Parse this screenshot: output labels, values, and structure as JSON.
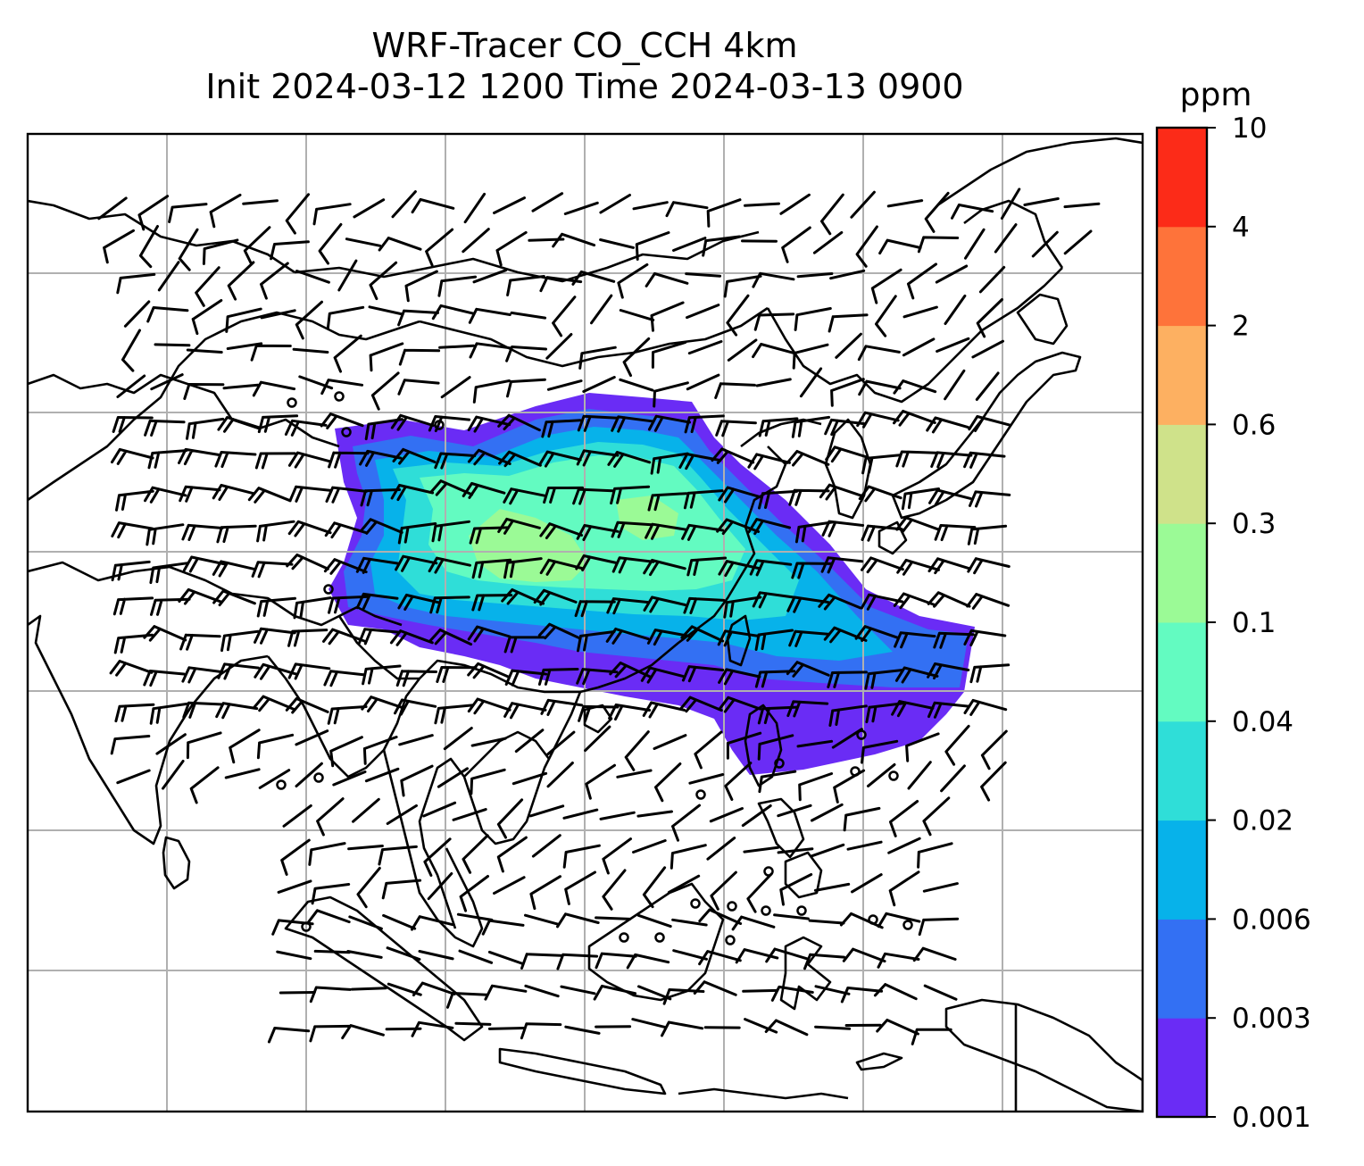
{
  "title": {
    "line1": "WRF-Tracer CO_CCH 4km",
    "line2": "Init 2024-03-12 1200 Time 2024-03-13 0900"
  },
  "colorbar": {
    "unit": "ppm",
    "ticks": [
      "0.001",
      "0.003",
      "0.006",
      "0.02",
      "0.04",
      "0.1",
      "0.3",
      "0.6",
      "2",
      "4",
      "10"
    ],
    "colors": [
      "#6a2cf5",
      "#3370f3",
      "#07b2ea",
      "#2fded8",
      "#63fbc1",
      "#9bfa96",
      "#cfe28a",
      "#fdb061",
      "#fe733a",
      "#fc2b18"
    ]
  },
  "map": {
    "background": "#ffffff",
    "gridline_color": "#b0b0b0",
    "coastline_color": "#000000",
    "barb_color": "#000000"
  }
}
